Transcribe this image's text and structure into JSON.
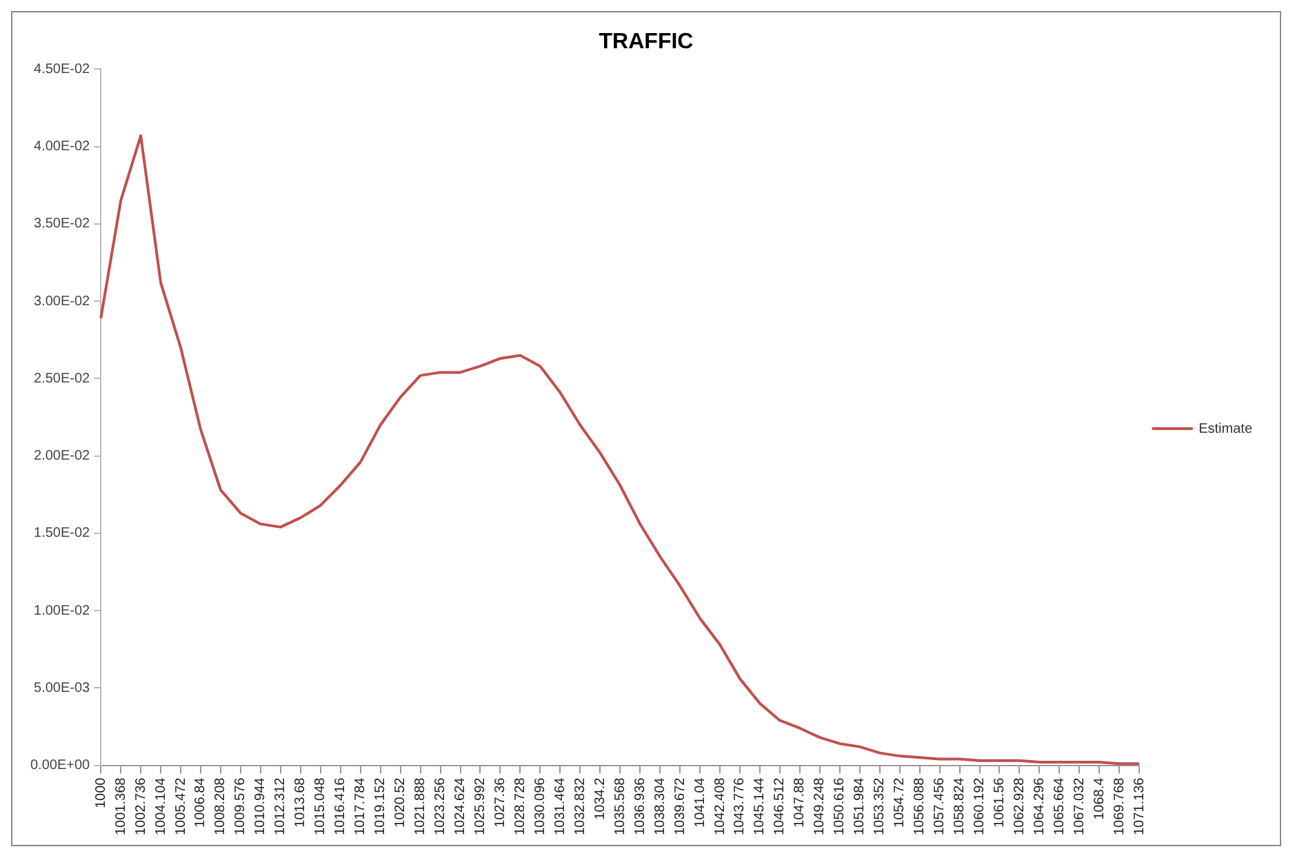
{
  "chart_data": {
    "type": "line",
    "title": "TRAFFIC",
    "categories": [
      "1000",
      "1001.368",
      "1002.736",
      "1004.104",
      "1005.472",
      "1006.84",
      "1008.208",
      "1009.576",
      "1010.944",
      "1012.312",
      "1013.68",
      "1015.048",
      "1016.416",
      "1017.784",
      "1019.152",
      "1020.52",
      "1021.888",
      "1023.256",
      "1024.624",
      "1025.992",
      "1027.36",
      "1028.728",
      "1030.096",
      "1031.464",
      "1032.832",
      "1034.2",
      "1035.568",
      "1036.936",
      "1038.304",
      "1039.672",
      "1041.04",
      "1042.408",
      "1043.776",
      "1045.144",
      "1046.512",
      "1047.88",
      "1049.248",
      "1050.616",
      "1051.984",
      "1053.352",
      "1054.72",
      "1056.088",
      "1057.456",
      "1058.824",
      "1060.192",
      "1061.56",
      "1062.928",
      "1064.296",
      "1065.664",
      "1067.032",
      "1068.4",
      "1069.768",
      "1071.136"
    ],
    "series": [
      {
        "name": "Estimate",
        "color": "#c0504d",
        "values": [
          0.0289,
          0.0365,
          0.0407,
          0.0312,
          0.027,
          0.0217,
          0.0178,
          0.0163,
          0.0156,
          0.0154,
          0.016,
          0.0168,
          0.0181,
          0.0196,
          0.022,
          0.0238,
          0.0252,
          0.0254,
          0.0254,
          0.0258,
          0.0263,
          0.0265,
          0.0258,
          0.0241,
          0.022,
          0.0202,
          0.0181,
          0.0156,
          0.0135,
          0.0116,
          0.0095,
          0.0078,
          0.0056,
          0.004,
          0.0029,
          0.0024,
          0.0018,
          0.0014,
          0.0012,
          0.0008,
          0.0006,
          0.0005,
          0.0004,
          0.0004,
          0.0003,
          0.0003,
          0.0003,
          0.0002,
          0.0002,
          0.0002,
          0.0002,
          0.0001,
          0.0001
        ]
      }
    ],
    "ylim": [
      0,
      0.045
    ],
    "yticks": [
      {
        "value": 0,
        "label": "0.00E+00"
      },
      {
        "value": 0.005,
        "label": "5.00E-03"
      },
      {
        "value": 0.01,
        "label": "1.00E-02"
      },
      {
        "value": 0.015,
        "label": "1.50E-02"
      },
      {
        "value": 0.02,
        "label": "2.00E-02"
      },
      {
        "value": 0.025,
        "label": "2.50E-02"
      },
      {
        "value": 0.03,
        "label": "3.00E-02"
      },
      {
        "value": 0.035,
        "label": "3.50E-02"
      },
      {
        "value": 0.04,
        "label": "4.00E-02"
      },
      {
        "value": 0.045,
        "label": "4.50E-02"
      }
    ],
    "grid": false,
    "legend": "right",
    "marker": "none",
    "line_style": "solid"
  }
}
